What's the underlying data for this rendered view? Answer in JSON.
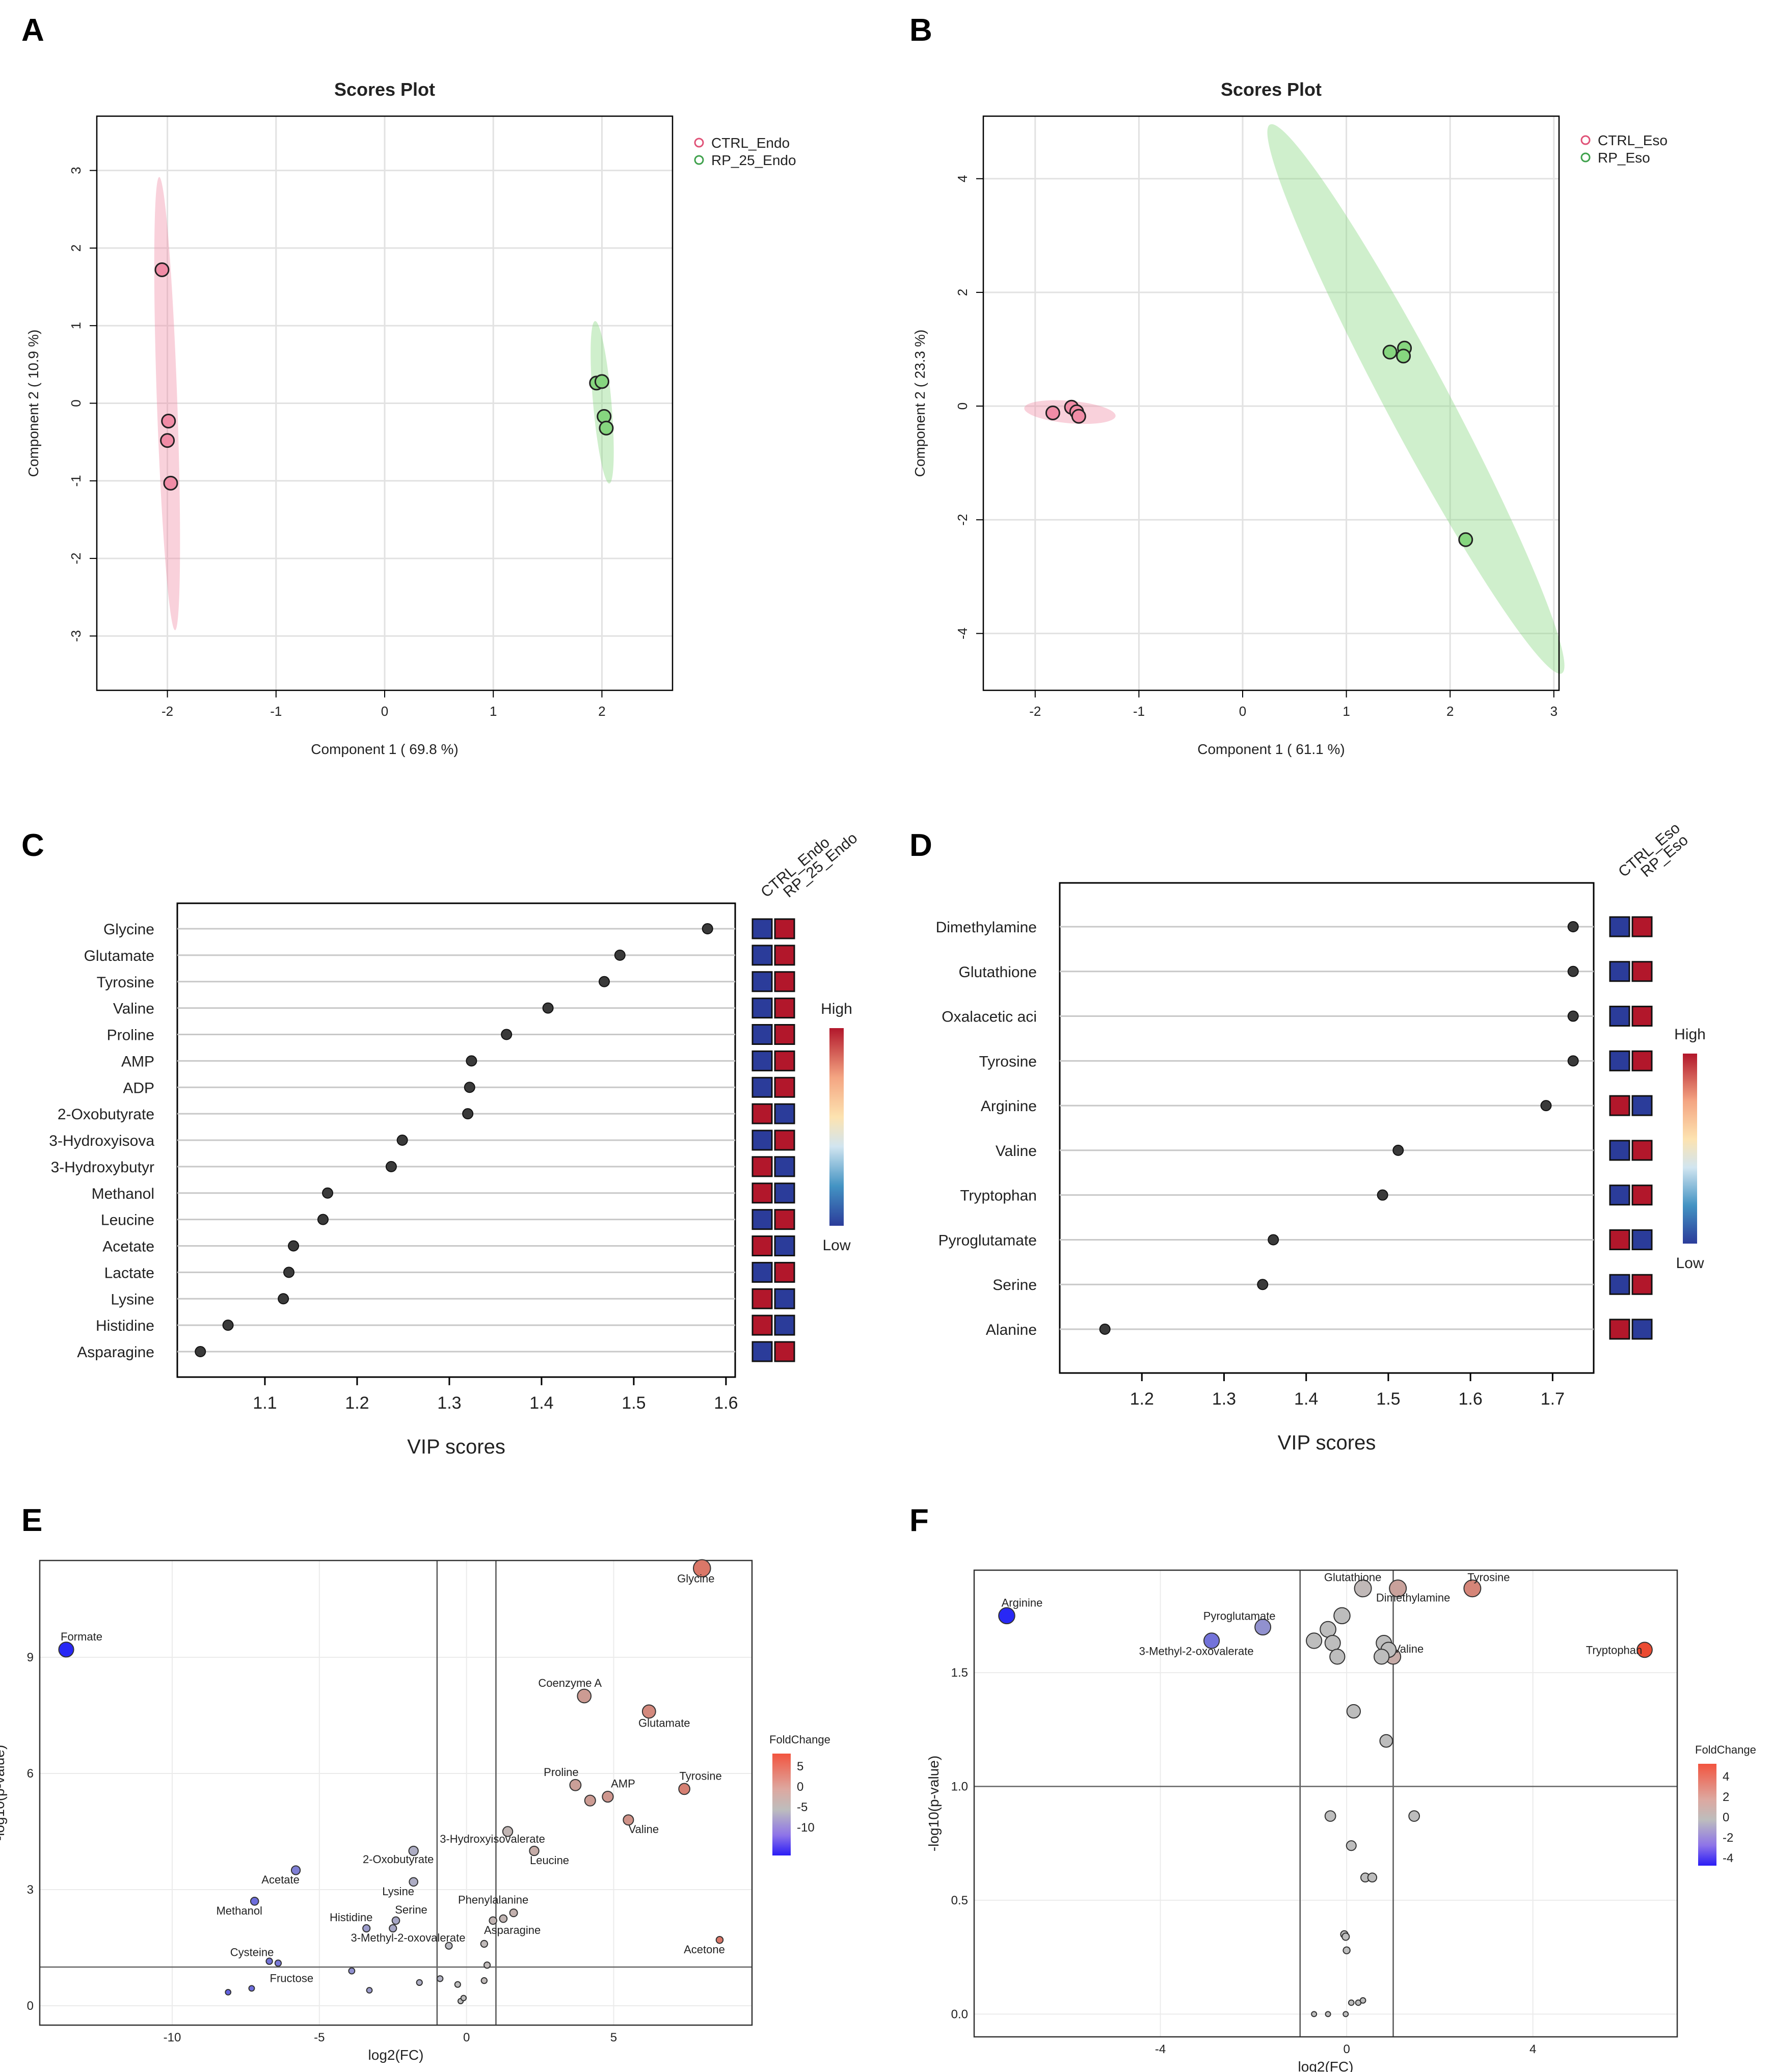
{
  "colors": {
    "ctrl": "#F08CA6",
    "rp": "#86D67F",
    "ctrl_edge": "#E05277",
    "rp_edge": "#3FA14C",
    "high": "#B2172B",
    "low": "#2B3C9A",
    "grid": "#E2E2E2"
  },
  "panels": {
    "A": "A",
    "B": "B",
    "C": "C",
    "D": "D",
    "E": "E",
    "F": "F"
  },
  "chart_data": [
    {
      "id": "A",
      "type": "scatter",
      "title": "Scores Plot",
      "xlabel": "Component 1 ( 69.8 %)",
      "ylabel": "Component 2 ( 10.9 %)",
      "xlim": [
        -2.65,
        2.65
      ],
      "ylim": [
        -3.7,
        3.7
      ],
      "xticks": [
        -2,
        -1,
        0,
        1,
        2
      ],
      "yticks": [
        -3,
        -2,
        -1,
        0,
        1,
        2,
        3
      ],
      "legend": [
        "CTRL_Endo",
        "RP_25_Endo"
      ],
      "series": [
        {
          "name": "CTRL_Endo",
          "points": [
            [
              -2.05,
              1.72
            ],
            [
              -1.99,
              -0.23
            ],
            [
              -2.0,
              -0.48
            ],
            [
              -1.97,
              -1.03
            ]
          ]
        },
        {
          "name": "RP_25_Endo",
          "points": [
            [
              1.95,
              0.26
            ],
            [
              2.0,
              0.28
            ],
            [
              2.02,
              -0.17
            ],
            [
              2.04,
              -0.32
            ]
          ]
        }
      ]
    },
    {
      "id": "B",
      "type": "scatter",
      "title": "Scores Plot",
      "xlabel": "Component 1 ( 61.1 %)",
      "ylabel": "Component 2 ( 23.3 %)",
      "xlim": [
        -2.5,
        3.05
      ],
      "ylim": [
        -5.0,
        5.1
      ],
      "xticks": [
        -2,
        -1,
        0,
        1,
        2,
        3
      ],
      "yticks": [
        -4,
        -2,
        0,
        2,
        4
      ],
      "legend": [
        "CTRL_Eso",
        "RP_Eso"
      ],
      "series": [
        {
          "name": "CTRL_Eso",
          "points": [
            [
              -1.83,
              -0.12
            ],
            [
              -1.65,
              -0.02
            ],
            [
              -1.6,
              -0.1
            ],
            [
              -1.58,
              -0.18
            ]
          ]
        },
        {
          "name": "RP_Eso",
          "points": [
            [
              1.42,
              0.95
            ],
            [
              1.56,
              1.02
            ],
            [
              1.55,
              0.88
            ],
            [
              2.15,
              -2.35
            ]
          ]
        }
      ]
    },
    {
      "id": "C",
      "type": "dot",
      "xlabel": "VIP scores",
      "xlim": [
        1.005,
        1.61
      ],
      "xticks": [
        1.1,
        1.2,
        1.3,
        1.4,
        1.5,
        1.6
      ],
      "heat_columns": [
        "CTRL_Endo",
        "RP_25_Endo"
      ],
      "scale": {
        "high": "High",
        "low": "Low"
      },
      "items": [
        {
          "label": "Glycine",
          "value": 1.58,
          "ctrl": "low"
        },
        {
          "label": "Glutamate",
          "value": 1.485,
          "ctrl": "low"
        },
        {
          "label": "Tyrosine",
          "value": 1.468,
          "ctrl": "low"
        },
        {
          "label": "Valine",
          "value": 1.407,
          "ctrl": "low"
        },
        {
          "label": "Proline",
          "value": 1.362,
          "ctrl": "low"
        },
        {
          "label": "AMP",
          "value": 1.324,
          "ctrl": "low"
        },
        {
          "label": "ADP",
          "value": 1.322,
          "ctrl": "low"
        },
        {
          "label": "2-Oxobutyrate",
          "value": 1.32,
          "ctrl": "high"
        },
        {
          "label": "3-Hydroxyisova",
          "value": 1.249,
          "ctrl": "low"
        },
        {
          "label": "3-Hydroxybutyr",
          "value": 1.237,
          "ctrl": "high"
        },
        {
          "label": "Methanol",
          "value": 1.168,
          "ctrl": "high"
        },
        {
          "label": "Leucine",
          "value": 1.163,
          "ctrl": "low"
        },
        {
          "label": "Acetate",
          "value": 1.131,
          "ctrl": "high"
        },
        {
          "label": "Lactate",
          "value": 1.126,
          "ctrl": "low"
        },
        {
          "label": "Lysine",
          "value": 1.12,
          "ctrl": "high"
        },
        {
          "label": "Histidine",
          "value": 1.06,
          "ctrl": "high"
        },
        {
          "label": "Asparagine",
          "value": 1.03,
          "ctrl": "low"
        }
      ]
    },
    {
      "id": "D",
      "type": "dot",
      "xlabel": "VIP scores",
      "xlim": [
        1.1,
        1.75
      ],
      "xticks": [
        1.2,
        1.3,
        1.4,
        1.5,
        1.6,
        1.7
      ],
      "heat_columns": [
        "CTRL_Eso",
        "RP_Eso"
      ],
      "scale": {
        "high": "High",
        "low": "Low"
      },
      "items": [
        {
          "label": "Dimethylamine",
          "value": 1.725,
          "ctrl": "low"
        },
        {
          "label": "Glutathione",
          "value": 1.725,
          "ctrl": "low"
        },
        {
          "label": "Oxalacetic aci",
          "value": 1.725,
          "ctrl": "low"
        },
        {
          "label": "Tyrosine",
          "value": 1.725,
          "ctrl": "low"
        },
        {
          "label": "Arginine",
          "value": 1.692,
          "ctrl": "high"
        },
        {
          "label": "Valine",
          "value": 1.512,
          "ctrl": "low"
        },
        {
          "label": "Tryptophan",
          "value": 1.493,
          "ctrl": "low"
        },
        {
          "label": "Pyroglutamate",
          "value": 1.36,
          "ctrl": "high"
        },
        {
          "label": "Serine",
          "value": 1.347,
          "ctrl": "low"
        },
        {
          "label": "Alanine",
          "value": 1.155,
          "ctrl": "high"
        }
      ]
    },
    {
      "id": "E",
      "type": "scatter",
      "subtype": "volcano",
      "xlabel": "log2(FC)",
      "ylabel": "-log10(p-value)",
      "xlim": [
        -14.5,
        9.7
      ],
      "ylim": [
        -0.5,
        11.5
      ],
      "xticks": [
        -10,
        -5,
        0,
        5
      ],
      "yticks": [
        0,
        3,
        6,
        9
      ],
      "vlines": [
        -1,
        1
      ],
      "hline": 1,
      "legend_title": "FoldChange",
      "legend_ticks": [
        "5",
        "0",
        "-5",
        "-10"
      ],
      "points": [
        {
          "label": "Glycine",
          "x": 8.0,
          "y": 11.3,
          "fc": 8
        },
        {
          "label": "Formate",
          "x": -13.6,
          "y": 9.2,
          "fc": -13
        },
        {
          "label": "Coenzyme A",
          "x": 4.0,
          "y": 8.0,
          "fc": 4
        },
        {
          "label": "Glutamate",
          "x": 6.2,
          "y": 7.6,
          "fc": 6
        },
        {
          "label": "Proline",
          "x": 3.7,
          "y": 5.7,
          "fc": 3.5
        },
        {
          "label": "AMP",
          "x": 4.8,
          "y": 5.4,
          "fc": 4.5
        },
        {
          "label": "",
          "x": 4.2,
          "y": 5.3,
          "fc": 4
        },
        {
          "label": "Tyrosine",
          "x": 7.4,
          "y": 5.6,
          "fc": 7
        },
        {
          "label": "Valine",
          "x": 5.5,
          "y": 4.8,
          "fc": 5
        },
        {
          "label": "3-Hydroxyisovalerate",
          "x": 1.4,
          "y": 4.5,
          "fc": 1
        },
        {
          "label": "Leucine",
          "x": 2.3,
          "y": 4.0,
          "fc": 2
        },
        {
          "label": "2-Oxobutyrate",
          "x": -1.8,
          "y": 4.0,
          "fc": -1.5
        },
        {
          "label": "Acetate",
          "x": -5.8,
          "y": 3.5,
          "fc": -5.5
        },
        {
          "label": "Lysine",
          "x": -1.8,
          "y": 3.2,
          "fc": -1.5
        },
        {
          "label": "Methanol",
          "x": -7.2,
          "y": 2.7,
          "fc": -7
        },
        {
          "label": "Phenylalanine",
          "x": 1.6,
          "y": 2.4,
          "fc": 1.5
        },
        {
          "label": "",
          "x": 1.25,
          "y": 2.25,
          "fc": 1
        },
        {
          "label": "Asparagine",
          "x": 0.9,
          "y": 2.2,
          "fc": 1
        },
        {
          "label": "Serine",
          "x": -2.4,
          "y": 2.2,
          "fc": -2
        },
        {
          "label": "",
          "x": -2.5,
          "y": 2.0,
          "fc": -2
        },
        {
          "label": "Histidine",
          "x": -3.4,
          "y": 2.0,
          "fc": -3
        },
        {
          "label": "3-Methyl-2-oxovalerate",
          "x": -0.6,
          "y": 1.55,
          "fc": -0.5
        },
        {
          "label": "",
          "x": 0.6,
          "y": 1.6,
          "fc": 0.5
        },
        {
          "label": "Acetone",
          "x": 8.6,
          "y": 1.7,
          "fc": 8
        },
        {
          "label": "Cysteine",
          "x": -6.7,
          "y": 1.15,
          "fc": -6.5
        },
        {
          "label": "",
          "x": -6.4,
          "y": 1.1,
          "fc": -6
        },
        {
          "label": "Fructose",
          "x": -3.9,
          "y": 0.9,
          "fc": -4
        },
        {
          "label": "",
          "x": 0.7,
          "y": 1.05,
          "fc": 0.5
        },
        {
          "label": "",
          "x": -8.1,
          "y": 0.35,
          "fc": -8
        },
        {
          "label": "",
          "x": -7.3,
          "y": 0.45,
          "fc": -7
        },
        {
          "label": "",
          "x": -1.6,
          "y": 0.6,
          "fc": -1.5
        },
        {
          "label": "",
          "x": -0.9,
          "y": 0.7,
          "fc": -1
        },
        {
          "label": "",
          "x": -0.3,
          "y": 0.55,
          "fc": 0
        },
        {
          "label": "",
          "x": 0.6,
          "y": 0.65,
          "fc": 0.5
        },
        {
          "label": "",
          "x": -0.2,
          "y": 0.12,
          "fc": 0
        },
        {
          "label": "",
          "x": -0.1,
          "y": 0.2,
          "fc": 0
        },
        {
          "label": "",
          "x": -3.3,
          "y": 0.4,
          "fc": -3
        }
      ]
    },
    {
      "id": "F",
      "type": "scatter",
      "subtype": "volcano",
      "xlabel": "log2(FC)",
      "ylabel": "-log10(p-value)",
      "xlim": [
        -8.0,
        7.1
      ],
      "ylim": [
        -0.1,
        1.95
      ],
      "xticks": [
        -4,
        0,
        4
      ],
      "yticks": [
        0.0,
        0.5,
        1.0,
        1.5
      ],
      "vlines": [
        -1,
        1
      ],
      "hline": 1,
      "legend_title": "FoldChange",
      "legend_ticks": [
        "4",
        "2",
        "0",
        "-2",
        "-4"
      ],
      "points": [
        {
          "label": "Arginine",
          "x": -7.3,
          "y": 1.75,
          "fc": -7
        },
        {
          "label": "Glutathione",
          "x": 0.35,
          "y": 1.87,
          "fc": 0.3
        },
        {
          "label": "Dimethylamine",
          "x": 1.1,
          "y": 1.87,
          "fc": 1.5
        },
        {
          "label": "Tyrosine",
          "x": 2.7,
          "y": 1.87,
          "fc": 3
        },
        {
          "label": "Pyroglutamate",
          "x": -1.8,
          "y": 1.7,
          "fc": -1.8
        },
        {
          "label": "3-Methyl-2-oxovalerate",
          "x": -2.9,
          "y": 1.64,
          "fc": -3
        },
        {
          "label": "Valine",
          "x": 1.0,
          "y": 1.57,
          "fc": 1
        },
        {
          "label": "Tryptophan",
          "x": 6.4,
          "y": 1.6,
          "fc": 6
        },
        {
          "label": "",
          "x": -0.1,
          "y": 1.75,
          "fc": 0
        },
        {
          "label": "",
          "x": -0.4,
          "y": 1.69,
          "fc": 0
        },
        {
          "label": "",
          "x": -0.7,
          "y": 1.64,
          "fc": 0
        },
        {
          "label": "",
          "x": -0.3,
          "y": 1.63,
          "fc": 0
        },
        {
          "label": "",
          "x": -0.2,
          "y": 1.57,
          "fc": 0
        },
        {
          "label": "",
          "x": 0.8,
          "y": 1.63,
          "fc": 0
        },
        {
          "label": "",
          "x": 0.9,
          "y": 1.6,
          "fc": 0
        },
        {
          "label": "",
          "x": 0.75,
          "y": 1.57,
          "fc": 0
        },
        {
          "label": "",
          "x": 0.15,
          "y": 1.33,
          "fc": 0
        },
        {
          "label": "",
          "x": 0.85,
          "y": 1.2,
          "fc": 0
        },
        {
          "label": "",
          "x": -0.35,
          "y": 0.87,
          "fc": 0
        },
        {
          "label": "",
          "x": 1.45,
          "y": 0.87,
          "fc": 0
        },
        {
          "label": "",
          "x": 0.1,
          "y": 0.74,
          "fc": 0
        },
        {
          "label": "",
          "x": 0.4,
          "y": 0.6,
          "fc": 0
        },
        {
          "label": "",
          "x": 0.55,
          "y": 0.6,
          "fc": 0
        },
        {
          "label": "",
          "x": -0.05,
          "y": 0.35,
          "fc": 0
        },
        {
          "label": "",
          "x": -0.02,
          "y": 0.34,
          "fc": 0
        },
        {
          "label": "",
          "x": 0.0,
          "y": 0.28,
          "fc": 0
        },
        {
          "label": "",
          "x": 0.1,
          "y": 0.05,
          "fc": 0
        },
        {
          "label": "",
          "x": 0.25,
          "y": 0.05,
          "fc": 0
        },
        {
          "label": "",
          "x": 0.35,
          "y": 0.06,
          "fc": 0
        },
        {
          "label": "",
          "x": -0.7,
          "y": 0.0,
          "fc": 0
        },
        {
          "label": "",
          "x": -0.4,
          "y": 0.0,
          "fc": 0
        },
        {
          "label": "",
          "x": -0.02,
          "y": 0.0,
          "fc": 0
        }
      ]
    }
  ]
}
